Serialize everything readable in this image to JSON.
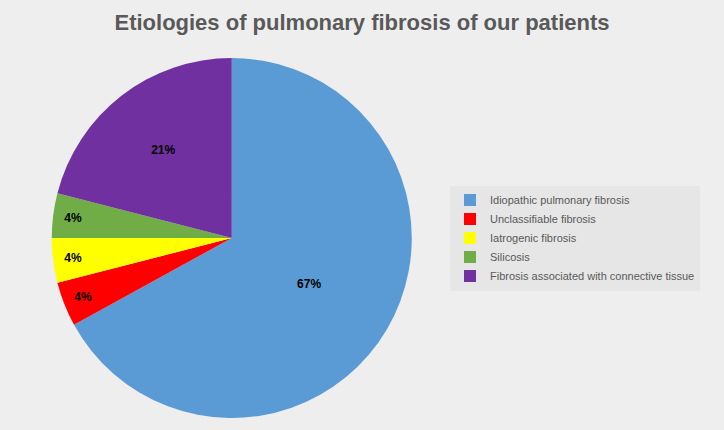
{
  "chart_data": {
    "type": "pie",
    "title": "Etiologies of pulmonary fibrosis of our patients",
    "categories": [
      "Idiopathic pulmonary fibrosis",
      "Unclassifiable fibrosis",
      "Iatrogenic fibrosis",
      "Silicosis",
      "Fibrosis associated with connective tissue"
    ],
    "values": [
      67,
      4,
      4,
      4,
      21
    ],
    "value_labels": [
      "67%",
      "4%",
      "4%",
      "4%",
      "21%"
    ],
    "colors": [
      "#5b9bd5",
      "#ff0000",
      "#ffff00",
      "#70ad47",
      "#7030a0"
    ],
    "data_labels": true,
    "legend": "right"
  }
}
